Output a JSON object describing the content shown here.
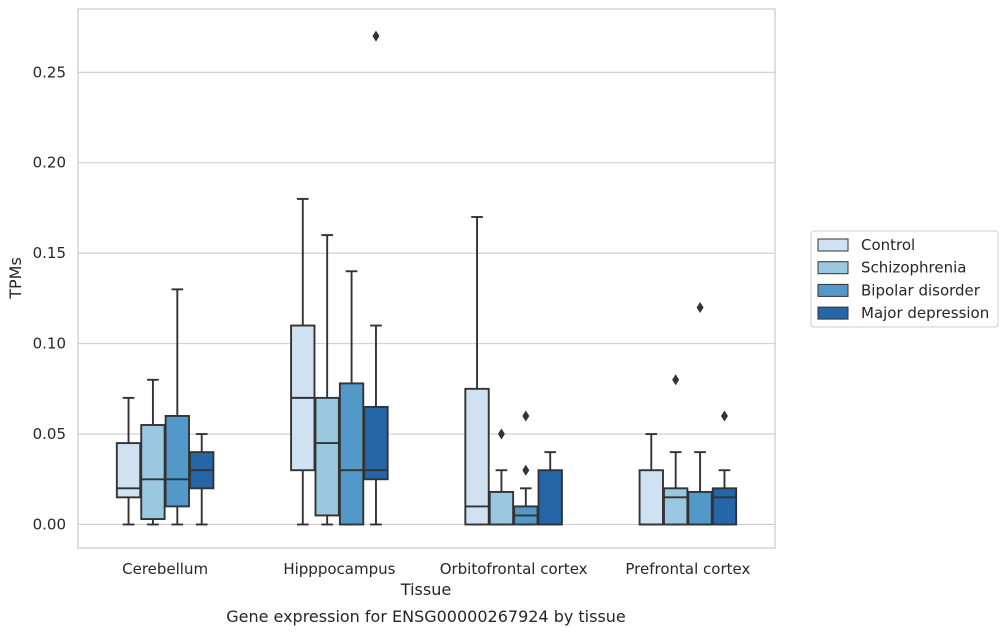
{
  "chart_data": {
    "type": "box",
    "ylabel": "TPMs",
    "xlabel": "Tissue",
    "caption": "Gene expression for ENSG00000267924 by tissue",
    "ylim": [
      -0.013,
      0.285
    ],
    "yticks": [
      0.0,
      0.05,
      0.1,
      0.15,
      0.2,
      0.25
    ],
    "ytick_labels": [
      "0.00",
      "0.05",
      "0.10",
      "0.15",
      "0.20",
      "0.25"
    ],
    "grid": "horizontal",
    "legend_position": "right",
    "categories": [
      "Cerebellum",
      "Hipppocampus",
      "Orbitofrontal cortex",
      "Prefrontal cortex"
    ],
    "series": [
      {
        "name": "Control",
        "color": "#d0e1f2",
        "boxes": [
          {
            "whislo": 0.0,
            "q1": 0.015,
            "med": 0.02,
            "q3": 0.045,
            "whishi": 0.07,
            "fliers": []
          },
          {
            "whislo": 0.0,
            "q1": 0.03,
            "med": 0.07,
            "q3": 0.11,
            "whishi": 0.18,
            "fliers": []
          },
          {
            "whislo": 0.0,
            "q1": 0.0,
            "med": 0.01,
            "q3": 0.075,
            "whishi": 0.17,
            "fliers": []
          },
          {
            "whislo": 0.0,
            "q1": 0.0,
            "med": 0.0,
            "q3": 0.03,
            "whishi": 0.05,
            "fliers": []
          }
        ]
      },
      {
        "name": "Schizophrenia",
        "color": "#9ac8e0",
        "boxes": [
          {
            "whislo": 0.0,
            "q1": 0.003,
            "med": 0.025,
            "q3": 0.055,
            "whishi": 0.08,
            "fliers": []
          },
          {
            "whislo": 0.0,
            "q1": 0.005,
            "med": 0.045,
            "q3": 0.07,
            "whishi": 0.16,
            "fliers": []
          },
          {
            "whislo": 0.0,
            "q1": 0.0,
            "med": 0.0,
            "q3": 0.018,
            "whishi": 0.03,
            "fliers": [
              0.05
            ]
          },
          {
            "whislo": 0.0,
            "q1": 0.0,
            "med": 0.015,
            "q3": 0.02,
            "whishi": 0.04,
            "fliers": [
              0.08
            ]
          }
        ]
      },
      {
        "name": "Bipolar disorder",
        "color": "#5299c9",
        "boxes": [
          {
            "whislo": 0.0,
            "q1": 0.01,
            "med": 0.025,
            "q3": 0.06,
            "whishi": 0.13,
            "fliers": []
          },
          {
            "whislo": 0.0,
            "q1": 0.0,
            "med": 0.03,
            "q3": 0.078,
            "whishi": 0.14,
            "fliers": []
          },
          {
            "whislo": 0.0,
            "q1": 0.0,
            "med": 0.005,
            "q3": 0.01,
            "whishi": 0.02,
            "fliers": [
              0.03,
              0.06
            ]
          },
          {
            "whislo": 0.0,
            "q1": 0.0,
            "med": 0.0,
            "q3": 0.018,
            "whishi": 0.04,
            "fliers": [
              0.12
            ]
          }
        ]
      },
      {
        "name": "Major depression",
        "color": "#2566a8",
        "boxes": [
          {
            "whislo": 0.0,
            "q1": 0.02,
            "med": 0.03,
            "q3": 0.04,
            "whishi": 0.05,
            "fliers": []
          },
          {
            "whislo": 0.0,
            "q1": 0.025,
            "med": 0.03,
            "q3": 0.065,
            "whishi": 0.11,
            "fliers": [
              0.27
            ]
          },
          {
            "whislo": 0.0,
            "q1": 0.0,
            "med": 0.0,
            "q3": 0.03,
            "whishi": 0.04,
            "fliers": []
          },
          {
            "whislo": 0.0,
            "q1": 0.0,
            "med": 0.015,
            "q3": 0.02,
            "whishi": 0.03,
            "fliers": [
              0.06
            ]
          }
        ]
      }
    ]
  }
}
